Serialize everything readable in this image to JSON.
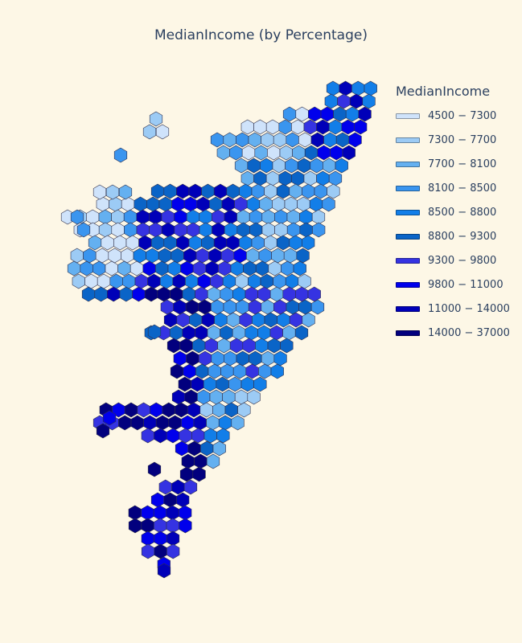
{
  "title": "MedianIncome (by Percentage)",
  "legend": {
    "title": "MedianIncome",
    "placement": "right",
    "items": [
      {
        "label": "4500 − 7300",
        "color": "#cfe3fb"
      },
      {
        "label": "7300 − 7700",
        "color": "#9ccbf5"
      },
      {
        "label": "7700 − 8100",
        "color": "#64b0f0"
      },
      {
        "label": "8100 − 8500",
        "color": "#3a95ef"
      },
      {
        "label": "8500 − 8800",
        "color": "#127ee8"
      },
      {
        "label": "8800 − 9300",
        "color": "#0a64c7"
      },
      {
        "label": "9300 − 9800",
        "color": "#3533e2"
      },
      {
        "label": "9800 − 11000",
        "color": "#0000ec"
      },
      {
        "label": "11000 − 14000",
        "color": "#0000b8"
      },
      {
        "label": "14000 − 37000",
        "color": "#02007e"
      }
    ]
  }
}
